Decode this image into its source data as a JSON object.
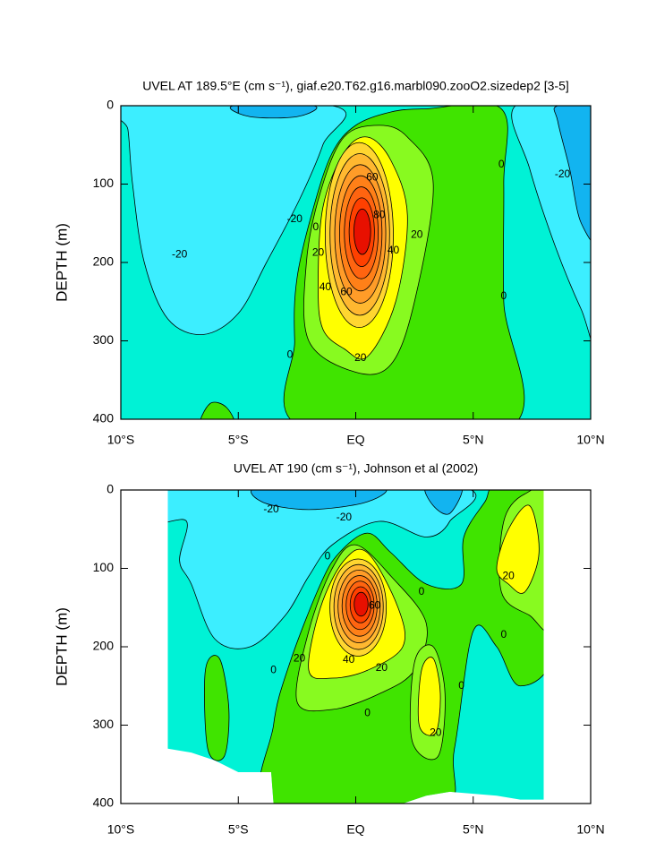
{
  "chart_data": [
    {
      "type": "contour",
      "title": "UVEL AT 189.5°E (cm s⁻¹), giaf.e20.T62.g16.marbl090.zooO2.sizedep2 [3-5]",
      "ylabel": "DEPTH (m)",
      "xlim": [
        -10,
        10
      ],
      "xticks": [
        {
          "value": -10,
          "label": "10°S"
        },
        {
          "value": -5,
          "label": "5°S"
        },
        {
          "value": 0,
          "label": "EQ"
        },
        {
          "value": 5,
          "label": "5°N"
        },
        {
          "value": 10,
          "label": "10°N"
        }
      ],
      "ylim": [
        400,
        0
      ],
      "yticks": [
        0,
        100,
        200,
        300,
        400
      ],
      "levels": [
        -30,
        -20,
        -10,
        0,
        10,
        20,
        30,
        40,
        50,
        60,
        70,
        80,
        90
      ],
      "colors": [
        "#12b4f0",
        "#3ceeff",
        "#00f2d6",
        "#40e400",
        "#88fa20",
        "#ffff00",
        "#ffd630",
        "#ffb830",
        "#ff9c28",
        "#ff8018",
        "#ff6410",
        "#ff4000",
        "#e81000"
      ],
      "contour_labels": [
        -20,
        -20,
        0,
        20,
        40,
        60,
        60,
        80,
        40,
        20,
        20,
        0,
        0,
        0,
        -20
      ]
    },
    {
      "type": "contour",
      "title": "UVEL AT 190 (cm s⁻¹), Johnson et al (2002)",
      "ylabel": "DEPTH (m)",
      "xlim": [
        -10,
        10
      ],
      "xticks": [
        {
          "value": -10,
          "label": "10°S"
        },
        {
          "value": -5,
          "label": "5°S"
        },
        {
          "value": 0,
          "label": "EQ"
        },
        {
          "value": 5,
          "label": "5°N"
        },
        {
          "value": 10,
          "label": "10°N"
        }
      ],
      "ylim": [
        400,
        0
      ],
      "yticks": [
        0,
        100,
        200,
        300,
        400
      ],
      "levels": [
        -30,
        -20,
        -10,
        0,
        10,
        20,
        30,
        40,
        50,
        60,
        70,
        80,
        90
      ],
      "colors": [
        "#12b4f0",
        "#3ceeff",
        "#00f2d6",
        "#40e400",
        "#88fa20",
        "#ffff00",
        "#ffd630",
        "#ffb830",
        "#ff9c28",
        "#ff8018",
        "#ff6410",
        "#ff4000",
        "#e81000"
      ],
      "contour_labels": [
        -20,
        -20,
        0,
        0,
        20,
        0,
        20,
        40,
        60,
        20,
        0,
        0,
        20,
        0
      ]
    }
  ]
}
